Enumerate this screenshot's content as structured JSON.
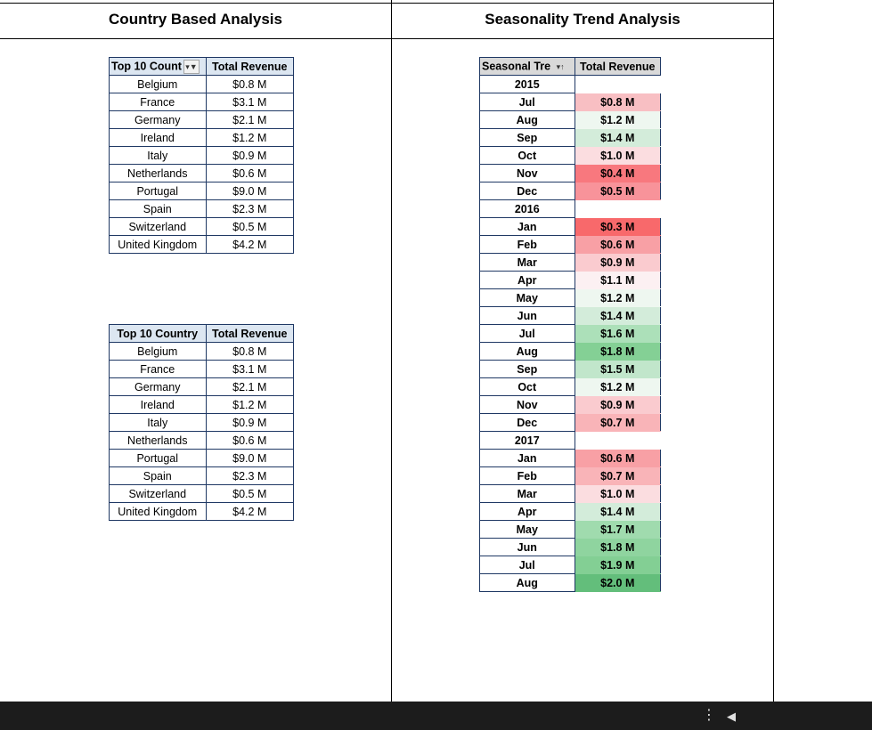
{
  "titles": {
    "left": "Country Based Analysis",
    "right": "Seasonality Trend Analysis"
  },
  "table1": {
    "col1": "Top 10 Count",
    "col2": "Total Revenue",
    "filter_icon": "filter-icon",
    "rows": [
      {
        "country": "Belgium",
        "revenue": "$0.8 M"
      },
      {
        "country": "France",
        "revenue": "$3.1 M"
      },
      {
        "country": "Germany",
        "revenue": "$2.1 M"
      },
      {
        "country": "Ireland",
        "revenue": "$1.2 M"
      },
      {
        "country": "Italy",
        "revenue": "$0.9 M"
      },
      {
        "country": "Netherlands",
        "revenue": "$0.6 M"
      },
      {
        "country": "Portugal",
        "revenue": "$9.0 M"
      },
      {
        "country": "Spain",
        "revenue": "$2.3 M"
      },
      {
        "country": "Switzerland",
        "revenue": "$0.5 M"
      },
      {
        "country": "United Kingdom",
        "revenue": "$4.2 M"
      }
    ]
  },
  "table2": {
    "col1": "Top 10 Country",
    "col2": "Total Revenue",
    "rows": [
      {
        "country": "Belgium",
        "revenue": "$0.8 M"
      },
      {
        "country": "France",
        "revenue": "$3.1 M"
      },
      {
        "country": "Germany",
        "revenue": "$2.1 M"
      },
      {
        "country": "Ireland",
        "revenue": "$1.2 M"
      },
      {
        "country": "Italy",
        "revenue": "$0.9 M"
      },
      {
        "country": "Netherlands",
        "revenue": "$0.6 M"
      },
      {
        "country": "Portugal",
        "revenue": "$9.0 M"
      },
      {
        "country": "Spain",
        "revenue": "$2.3 M"
      },
      {
        "country": "Switzerland",
        "revenue": "$0.5 M"
      },
      {
        "country": "United Kingdom",
        "revenue": "$4.2 M"
      }
    ]
  },
  "seasonal": {
    "col1": "Seasonal Tre",
    "col2": "Total Revenue",
    "sort_icon": "sort-filter-icon",
    "rows": [
      {
        "kind": "year",
        "label": "2015",
        "value": "",
        "color": "#ffffff"
      },
      {
        "kind": "month",
        "label": "Jul",
        "value": "$0.8 M",
        "color": "#f8bfc3"
      },
      {
        "kind": "month",
        "label": "Aug",
        "value": "$1.2 M",
        "color": "#eef7f0"
      },
      {
        "kind": "month",
        "label": "Sep",
        "value": "$1.4 M",
        "color": "#d3ecda"
      },
      {
        "kind": "month",
        "label": "Oct",
        "value": "$1.0 M",
        "color": "#fbdde0"
      },
      {
        "kind": "month",
        "label": "Nov",
        "value": "$0.4 M",
        "color": "#f8787e"
      },
      {
        "kind": "month",
        "label": "Dec",
        "value": "$0.5 M",
        "color": "#f8939a"
      },
      {
        "kind": "year",
        "label": "2016",
        "value": "",
        "color": "#ffffff"
      },
      {
        "kind": "month",
        "label": "Jan",
        "value": "$0.3 M",
        "color": "#f8696b"
      },
      {
        "kind": "month",
        "label": "Feb",
        "value": "$0.6 M",
        "color": "#f8a0a5"
      },
      {
        "kind": "month",
        "label": "Mar",
        "value": "$0.9 M",
        "color": "#facbcf"
      },
      {
        "kind": "month",
        "label": "Apr",
        "value": "$1.1 M",
        "color": "#fcf0f2"
      },
      {
        "kind": "month",
        "label": "May",
        "value": "$1.2 M",
        "color": "#eef7f0"
      },
      {
        "kind": "month",
        "label": "Jun",
        "value": "$1.4 M",
        "color": "#d3ecda"
      },
      {
        "kind": "month",
        "label": "Jul",
        "value": "$1.6 M",
        "color": "#ace0b9"
      },
      {
        "kind": "month",
        "label": "Aug",
        "value": "$1.8 M",
        "color": "#84d095"
      },
      {
        "kind": "month",
        "label": "Sep",
        "value": "$1.5 M",
        "color": "#c1e6cb"
      },
      {
        "kind": "month",
        "label": "Oct",
        "value": "$1.2 M",
        "color": "#eef7f0"
      },
      {
        "kind": "month",
        "label": "Nov",
        "value": "$0.9 M",
        "color": "#facbcf"
      },
      {
        "kind": "month",
        "label": "Dec",
        "value": "$0.7 M",
        "color": "#f9b4b8"
      },
      {
        "kind": "year",
        "label": "2017",
        "value": "",
        "color": "#ffffff"
      },
      {
        "kind": "month",
        "label": "Jan",
        "value": "$0.6 M",
        "color": "#f8a0a5"
      },
      {
        "kind": "month",
        "label": "Feb",
        "value": "$0.7 M",
        "color": "#f9b4b8"
      },
      {
        "kind": "month",
        "label": "Mar",
        "value": "$1.0 M",
        "color": "#fbdde0"
      },
      {
        "kind": "month",
        "label": "Apr",
        "value": "$1.4 M",
        "color": "#d3ecda"
      },
      {
        "kind": "month",
        "label": "May",
        "value": "$1.7 M",
        "color": "#a0dbae"
      },
      {
        "kind": "month",
        "label": "Jun",
        "value": "$1.8 M",
        "color": "#8fd49f"
      },
      {
        "kind": "month",
        "label": "Jul",
        "value": "$1.9 M",
        "color": "#83cf94"
      },
      {
        "kind": "month",
        "label": "Aug",
        "value": "$2.0 M",
        "color": "#63be7b"
      }
    ]
  },
  "taskbar": {
    "menu_icon": "more-vertical-icon",
    "back_icon": "back-triangle-icon"
  }
}
